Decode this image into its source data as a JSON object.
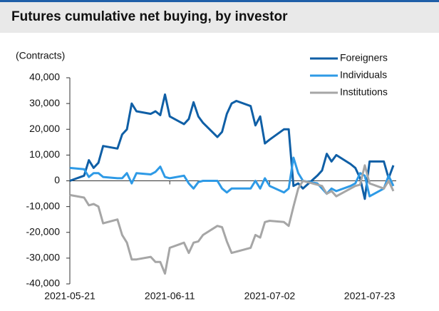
{
  "chart_data": {
    "type": "line",
    "title": "Futures cumulative net buying, by investor",
    "y_label": "(Contracts)",
    "x": [
      "2021-05-21",
      "2021-05-24",
      "2021-05-25",
      "2021-05-26",
      "2021-05-27",
      "2021-05-28",
      "2021-05-31",
      "2021-06-01",
      "2021-06-02",
      "2021-06-03",
      "2021-06-04",
      "2021-06-07",
      "2021-06-08",
      "2021-06-09",
      "2021-06-10",
      "2021-06-11",
      "2021-06-14",
      "2021-06-15",
      "2021-06-16",
      "2021-06-17",
      "2021-06-18",
      "2021-06-21",
      "2021-06-22",
      "2021-06-23",
      "2021-06-24",
      "2021-06-25",
      "2021-06-28",
      "2021-06-29",
      "2021-06-30",
      "2021-07-01",
      "2021-07-02",
      "2021-07-05",
      "2021-07-06",
      "2021-07-07",
      "2021-07-08",
      "2021-07-09",
      "2021-07-12",
      "2021-07-13",
      "2021-07-14",
      "2021-07-15",
      "2021-07-16",
      "2021-07-19",
      "2021-07-20",
      "2021-07-21",
      "2021-07-22",
      "2021-07-23",
      "2021-07-26",
      "2021-07-27",
      "2021-07-28"
    ],
    "series": [
      {
        "name": "Foreigners",
        "color": "#0f5fa6",
        "values": [
          0,
          2000,
          8000,
          5000,
          7000,
          13500,
          12500,
          18000,
          20000,
          30000,
          27000,
          26000,
          27000,
          25500,
          33500,
          25000,
          22000,
          24000,
          30500,
          25000,
          22500,
          17000,
          19000,
          26000,
          30000,
          31000,
          29000,
          21500,
          25000,
          14500,
          16000,
          20000,
          20000,
          -2000,
          -1000,
          -3000,
          2000,
          4000,
          10500,
          7500,
          10000,
          6500,
          5000,
          1000,
          -7000,
          7500,
          7500,
          1000,
          6000
        ]
      },
      {
        "name": "Individuals",
        "color": "#2e9ae6",
        "values": [
          5000,
          4500,
          1500,
          3000,
          3000,
          1500,
          1000,
          1000,
          3000,
          -1000,
          3000,
          2500,
          3500,
          5500,
          1500,
          1000,
          2000,
          -1000,
          -3000,
          -500,
          0,
          0,
          -3000,
          -4500,
          -3000,
          -3000,
          -3000,
          0,
          -3000,
          1000,
          -2000,
          -4500,
          -3000,
          9000,
          3000,
          0,
          -1000,
          -3000,
          -5000,
          -3000,
          -4000,
          -2000,
          -1000,
          3000,
          2000,
          -6000,
          -3000,
          2000,
          -2000
        ]
      },
      {
        "name": "Institutions",
        "color": "#a6a6a6",
        "values": [
          -5500,
          -6500,
          -9500,
          -9000,
          -10000,
          -16500,
          -15000,
          -21000,
          -24000,
          -30500,
          -30500,
          -29500,
          -31500,
          -31500,
          -36000,
          -26000,
          -24000,
          -28000,
          -24000,
          -23500,
          -21000,
          -17500,
          -18000,
          -23500,
          -28000,
          -27500,
          -26000,
          -21000,
          -22000,
          -16000,
          -15500,
          -16000,
          -17500,
          -10000,
          -3000,
          0,
          -1500,
          -2000,
          -5000,
          -4000,
          -6000,
          -3000,
          -2000,
          -1500,
          6000,
          -1000,
          -3000,
          0,
          -4000
        ]
      }
    ],
    "xlim": [
      "2021-05-21",
      "2021-07-28"
    ],
    "xticks": [
      "2021-05-21",
      "2021-06-11",
      "2021-07-02",
      "2021-07-23"
    ],
    "ylim": [
      -40000,
      40000
    ],
    "yticks": [
      {
        "value": -40000,
        "label": "-40,000"
      },
      {
        "value": -30000,
        "label": "-30,000"
      },
      {
        "value": -20000,
        "label": "-20,000"
      },
      {
        "value": -10000,
        "label": "-10,000"
      },
      0,
      {
        "value": 10000,
        "label": "10,000"
      },
      {
        "value": 20000,
        "label": "20,000"
      },
      {
        "value": 30000,
        "label": "30,000"
      },
      {
        "value": 40000,
        "label": "40,000"
      }
    ],
    "legend": "upper right"
  }
}
